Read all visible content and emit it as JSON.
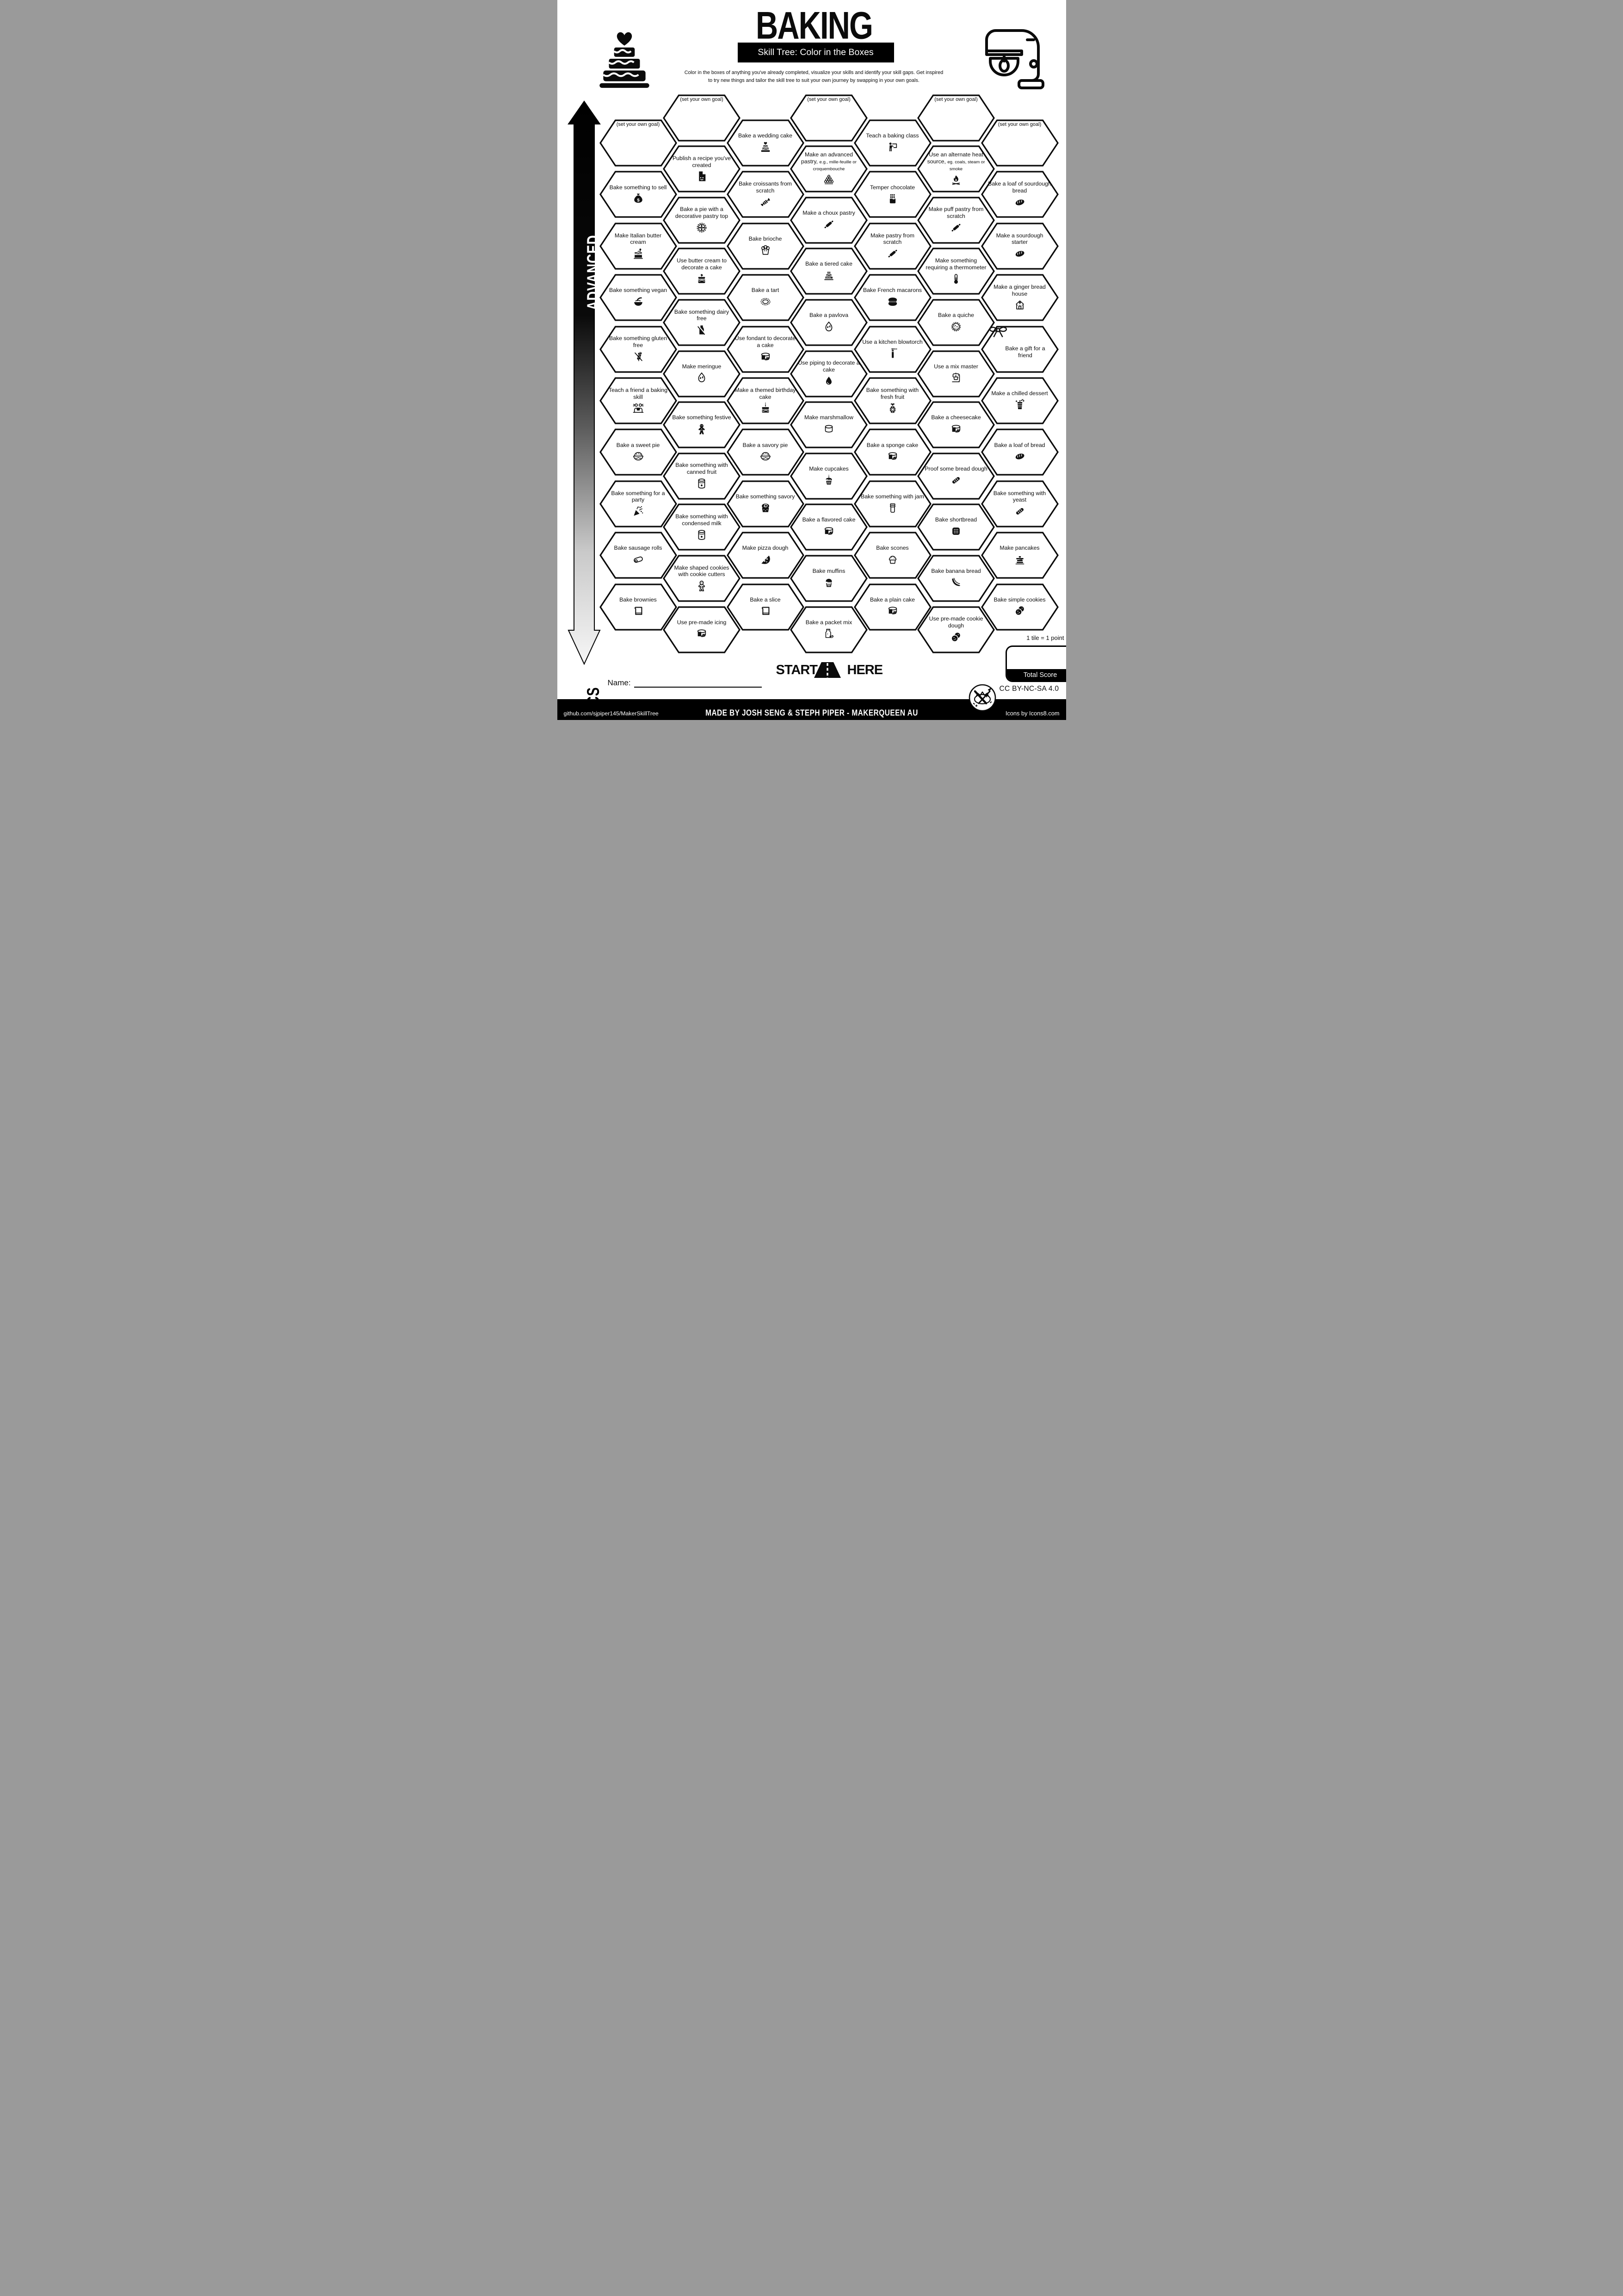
{
  "header": {
    "title": "BAKING",
    "subtitle": "Skill Tree: Color in the Boxes",
    "description_line1": "Color in the boxes of anything you've already completed, visualize your skills and identify your skill gaps.  Get inspired",
    "description_line2": "to try new things and tailor the skill tree to suit your own journey by swapping in your own goals.",
    "left_icon": "wedding-cake-icon",
    "right_icon": "stand-mixer-icon"
  },
  "axis": {
    "top": "ADVANCED",
    "bottom": "BASICS"
  },
  "start": {
    "word1": "START",
    "word2": "HERE",
    "icon": "road-icon"
  },
  "name_label": "Name:",
  "score": {
    "tile_note": "1 tile = 1 point",
    "total_label": "Total Score"
  },
  "license": "CC BY-NC-SA 4.0",
  "license_icon": "makerqueen-logo-icon",
  "footer": {
    "left": "github.com/sjpiper145/MakerSkillTree",
    "center": "MADE BY JOSH SENG & STEPH PIPER  -  MAKERQUEEN AU",
    "right": "Icons by Icons8.com"
  },
  "colors": {
    "ink": "#000000",
    "paper": "#ffffff"
  },
  "hexes": [
    {
      "col": 0,
      "row": 0,
      "goal": true,
      "label": "(set your own goal)"
    },
    {
      "col": 0,
      "row": 1,
      "label": "Bake something to sell",
      "icon": "money-bag"
    },
    {
      "col": 0,
      "row": 2,
      "label": "Make Italian butter cream",
      "icon": "cake-slice"
    },
    {
      "col": 0,
      "row": 3,
      "label": "Bake something vegan",
      "icon": "vegan-bowl"
    },
    {
      "col": 0,
      "row": 4,
      "label": "Bake something gluten free",
      "icon": "wheat-crossed"
    },
    {
      "col": 0,
      "row": 5,
      "label": "Teach a friend a baking skill",
      "icon": "friends-teaching"
    },
    {
      "col": 0,
      "row": 6,
      "label": "Bake a sweet pie",
      "icon": "pie"
    },
    {
      "col": 0,
      "row": 7,
      "label": "Bake something for a party",
      "icon": "party-popper"
    },
    {
      "col": 0,
      "row": 8,
      "label": "Bake sausage rolls",
      "icon": "sausage-roll"
    },
    {
      "col": 0,
      "row": 9,
      "label": "Bake brownies",
      "icon": "baking-pan"
    },
    {
      "col": 1,
      "row": 0,
      "goal": true,
      "label": "(set your own goal)"
    },
    {
      "col": 1,
      "row": 1,
      "label": "Publish a recipe you've created",
      "icon": "recipe-document"
    },
    {
      "col": 1,
      "row": 2,
      "label": "Bake a pie with a decorative pastry top",
      "icon": "lattice-pie"
    },
    {
      "col": 1,
      "row": 3,
      "label": "Use butter cream to decorate a cake",
      "icon": "layer-cake"
    },
    {
      "col": 1,
      "row": 4,
      "label": "Bake something dairy free",
      "icon": "milk-crossed"
    },
    {
      "col": 1,
      "row": 5,
      "label": "Make meringue",
      "icon": "meringue"
    },
    {
      "col": 1,
      "row": 6,
      "label": "Bake something festive",
      "icon": "gingerbread-man"
    },
    {
      "col": 1,
      "row": 7,
      "label": "Bake something with canned fruit",
      "icon": "food-can"
    },
    {
      "col": 1,
      "row": 8,
      "label": "Bake something with condensed milk",
      "icon": "food-can"
    },
    {
      "col": 1,
      "row": 9,
      "label": "Make shaped cookies with cookie cutters",
      "icon": "gingerbread-outline"
    },
    {
      "col": 1,
      "row": 10,
      "label": "Use pre-made icing",
      "icon": "drip-cake"
    },
    {
      "col": 2,
      "row": 0,
      "label": "Bake a wedding cake",
      "icon": "wedding-cake"
    },
    {
      "col": 2,
      "row": 1,
      "label": "Bake croissants from scratch",
      "icon": "croissant"
    },
    {
      "col": 2,
      "row": 2,
      "label": "Bake brioche",
      "icon": "brioche"
    },
    {
      "col": 2,
      "row": 3,
      "label": "Bake a tart",
      "icon": "tart"
    },
    {
      "col": 2,
      "row": 4,
      "label": "Use fondant to decorate a cake",
      "icon": "drip-cake"
    },
    {
      "col": 2,
      "row": 5,
      "label": "Make a themed birthday cake",
      "icon": "birthday-cake"
    },
    {
      "col": 2,
      "row": 6,
      "label": "Bake a savory pie",
      "icon": "pie"
    },
    {
      "col": 2,
      "row": 7,
      "label": "Bake something savory",
      "icon": "savory-swirl"
    },
    {
      "col": 2,
      "row": 8,
      "label": "Make pizza dough",
      "icon": "pizza-slice"
    },
    {
      "col": 2,
      "row": 9,
      "label": "Bake a slice",
      "icon": "baking-pan"
    },
    {
      "col": 3,
      "row": 0,
      "goal": true,
      "label": "(set your own goal)"
    },
    {
      "col": 3,
      "row": 1,
      "label": "Make an advanced pastry,",
      "small": "e.g., mille-feuille or croquembouche",
      "icon": "croquembouche"
    },
    {
      "col": 3,
      "row": 2,
      "label": "Make a choux pastry",
      "icon": "rolling-pin"
    },
    {
      "col": 3,
      "row": 3,
      "label": "Bake a tiered cake",
      "icon": "tiered-cake"
    },
    {
      "col": 3,
      "row": 4,
      "label": "Bake a pavlova",
      "icon": "meringue"
    },
    {
      "col": 3,
      "row": 5,
      "label": "Use piping to decorate a cake",
      "icon": "piping-drop"
    },
    {
      "col": 3,
      "row": 6,
      "label": "Make marshmallow",
      "icon": "marshmallow"
    },
    {
      "col": 3,
      "row": 7,
      "label": "Make cupcakes",
      "icon": "cupcake-candle"
    },
    {
      "col": 3,
      "row": 8,
      "label": "Bake a flavored cake",
      "icon": "drip-cake"
    },
    {
      "col": 3,
      "row": 9,
      "label": "Bake muffins",
      "icon": "muffin"
    },
    {
      "col": 3,
      "row": 10,
      "label": "Bake a packet mix",
      "icon": "packet-mix"
    },
    {
      "col": 4,
      "row": 0,
      "label": "Teach a baking class",
      "icon": "teacher-board"
    },
    {
      "col": 4,
      "row": 1,
      "label": "Temper chocolate",
      "icon": "chocolate-bar"
    },
    {
      "col": 4,
      "row": 2,
      "label": "Make pastry from scratch",
      "icon": "rolling-pin"
    },
    {
      "col": 4,
      "row": 3,
      "label": "Bake French macarons",
      "icon": "macaron"
    },
    {
      "col": 4,
      "row": 4,
      "label": "Use a kitchen blowtorch",
      "icon": "blowtorch"
    },
    {
      "col": 4,
      "row": 5,
      "label": "Bake something with fresh fruit",
      "icon": "pineapple"
    },
    {
      "col": 4,
      "row": 6,
      "label": "Bake a sponge cake",
      "icon": "drip-cake"
    },
    {
      "col": 4,
      "row": 7,
      "label": "Bake something with jam",
      "icon": "jam-jar"
    },
    {
      "col": 4,
      "row": 8,
      "label": "Bake scones",
      "icon": "scone"
    },
    {
      "col": 4,
      "row": 9,
      "label": "Bake a plain cake",
      "icon": "drip-cake"
    },
    {
      "col": 5,
      "row": 0,
      "goal": true,
      "label": "(set your own goal)"
    },
    {
      "col": 5,
      "row": 1,
      "label": "Use an alternate heat source,",
      "small": "eg. coals, steam or smoke",
      "icon": "campfire"
    },
    {
      "col": 5,
      "row": 2,
      "label": "Make puff pastry from scratch",
      "icon": "rolling-pin"
    },
    {
      "col": 5,
      "row": 3,
      "label": "Make something requiring a thermometer",
      "icon": "thermometer"
    },
    {
      "col": 5,
      "row": 4,
      "label": "Bake a quiche",
      "icon": "quiche"
    },
    {
      "col": 5,
      "row": 5,
      "label": "Use a mix master",
      "icon": "stand-mixer"
    },
    {
      "col": 5,
      "row": 6,
      "label": "Bake a cheesecake",
      "icon": "drip-cake"
    },
    {
      "col": 5,
      "row": 7,
      "label": "Proof some bread dough",
      "icon": "baguette"
    },
    {
      "col": 5,
      "row": 8,
      "label": "Bake shortbread",
      "icon": "shortbread"
    },
    {
      "col": 5,
      "row": 9,
      "label": "Bake banana bread",
      "icon": "banana"
    },
    {
      "col": 5,
      "row": 10,
      "label": "Use pre-made cookie dough",
      "icon": "cookies"
    },
    {
      "col": 6,
      "row": 0,
      "goal": true,
      "label": "(set your own goal)"
    },
    {
      "col": 6,
      "row": 1,
      "label": "Bake a loaf of sourdough bread",
      "icon": "bread-loaf"
    },
    {
      "col": 6,
      "row": 2,
      "label": "Make a sourdough starter",
      "icon": "bread-loaf"
    },
    {
      "col": 6,
      "row": 3,
      "label": "Make a ginger bread house",
      "icon": "gingerbread-house"
    },
    {
      "col": 6,
      "row": 4,
      "label": "Bake a gift for a friend",
      "icon": "gift-bow",
      "variant": "gift"
    },
    {
      "col": 6,
      "row": 5,
      "label": "Make a chilled dessert",
      "icon": "chilled-dessert"
    },
    {
      "col": 6,
      "row": 6,
      "label": "Bake a loaf of bread",
      "icon": "bread-loaf"
    },
    {
      "col": 6,
      "row": 7,
      "label": "Bake something with yeast",
      "icon": "baguette"
    },
    {
      "col": 6,
      "row": 8,
      "label": "Make pancakes",
      "icon": "pancakes"
    },
    {
      "col": 6,
      "row": 9,
      "label": "Bake simple cookies",
      "icon": "cookies"
    }
  ]
}
